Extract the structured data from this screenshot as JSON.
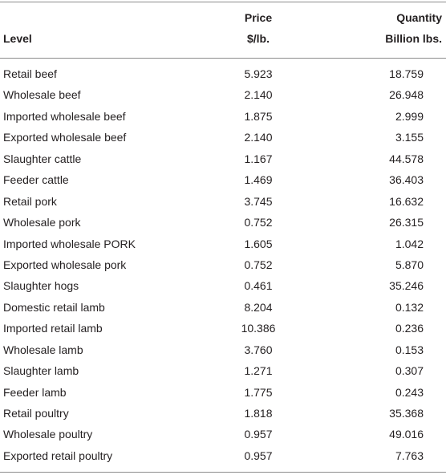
{
  "header": {
    "level": "Level",
    "price": [
      "Price",
      "$/lb."
    ],
    "quantity": [
      "Quantity",
      "Billion lbs."
    ]
  },
  "table": {
    "rows": [
      [
        "Retail beef",
        "5.923",
        "18.759"
      ],
      [
        "Wholesale beef",
        "2.140",
        "26.948"
      ],
      [
        "Imported wholesale beef",
        "1.875",
        "2.999"
      ],
      [
        "Exported wholesale beef",
        "2.140",
        "3.155"
      ],
      [
        "Slaughter cattle",
        "1.167",
        "44.578"
      ],
      [
        "Feeder cattle",
        "1.469",
        "36.403"
      ],
      [
        "Retail pork",
        "3.745",
        "16.632"
      ],
      [
        "Wholesale pork",
        "0.752",
        "26.315"
      ],
      [
        "Imported wholesale PORK",
        "1.605",
        "1.042"
      ],
      [
        "Exported wholesale pork",
        "0.752",
        "5.870"
      ],
      [
        "Slaughter hogs",
        "0.461",
        "35.246"
      ],
      [
        "Domestic retail lamb",
        "8.204",
        "0.132"
      ],
      [
        "Imported retail lamb",
        "10.386",
        "0.236"
      ],
      [
        "Wholesale lamb",
        "3.760",
        "0.153"
      ],
      [
        "Slaughter lamb",
        "1.271",
        "0.307"
      ],
      [
        "Feeder lamb",
        "1.775",
        "0.243"
      ],
      [
        "Retail poultry",
        "1.818",
        "35.368"
      ],
      [
        "Wholesale poultry",
        "0.957",
        "49.016"
      ],
      [
        "Exported retail poultry",
        "0.957",
        "7.763"
      ]
    ]
  }
}
